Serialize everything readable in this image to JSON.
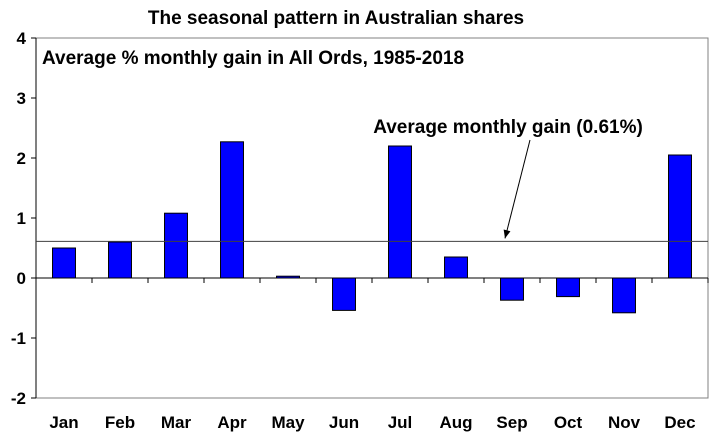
{
  "chart_data": {
    "type": "bar",
    "title": "The seasonal pattern in Australian shares",
    "subtitle": "Average % monthly gain in All Ords, 1985-2018",
    "xlabel": "",
    "ylabel": "",
    "categories": [
      "Jan",
      "Feb",
      "Mar",
      "Apr",
      "May",
      "Jun",
      "Jul",
      "Aug",
      "Sep",
      "Oct",
      "Nov",
      "Dec"
    ],
    "series": [
      {
        "values": [
          0.5,
          0.6,
          1.08,
          2.27,
          0.03,
          -0.54,
          2.2,
          0.35,
          -0.37,
          -0.31,
          -0.58,
          2.05
        ]
      }
    ],
    "ylim": [
      -2,
      4
    ],
    "yticks": [
      "-2",
      "-1",
      "0",
      "1",
      "2",
      "3",
      "4"
    ],
    "grid": false,
    "legend": "none",
    "bar_color": "#0000ff",
    "reference_line": {
      "value": 0.61,
      "label": "Average monthly gain (0.61%)"
    }
  }
}
